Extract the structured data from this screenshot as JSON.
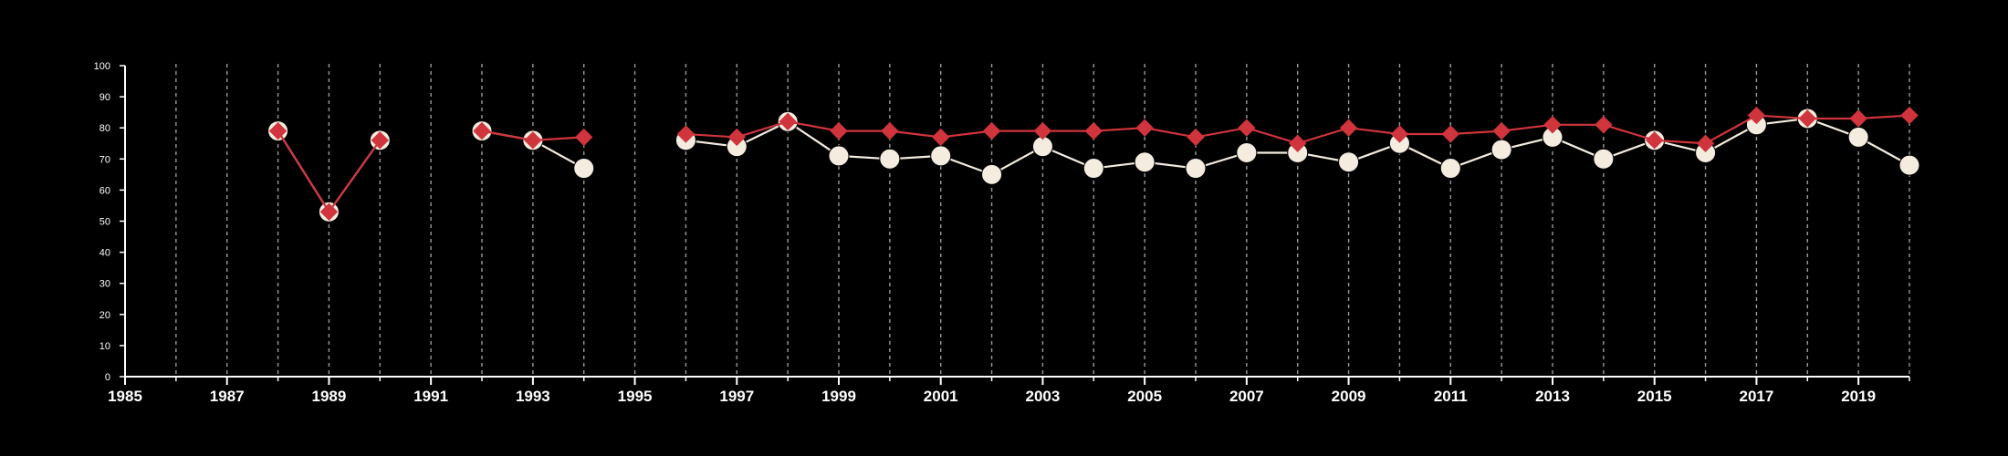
{
  "chart_data": {
    "type": "line",
    "title": "",
    "xlabel": "",
    "ylabel": "",
    "xlim": [
      1985,
      2020
    ],
    "ylim": [
      0,
      100
    ],
    "x_ticks": [
      "1985",
      "1987",
      "1989",
      "1991",
      "1993",
      "1995",
      "1997",
      "1999",
      "2001",
      "2003",
      "2005",
      "2007",
      "2009",
      "2011",
      "2013",
      "2015",
      "2017",
      "2019"
    ],
    "y_ticks": [
      "0",
      "10",
      "20",
      "30",
      "40",
      "50",
      "60",
      "70",
      "80",
      "90",
      "100"
    ],
    "vertical_gridlines": "dashed, every year",
    "series": [
      {
        "marker": "circle",
        "color": "#f5ece0",
        "points": [
          [
            1988,
            79
          ],
          [
            1989,
            53
          ],
          [
            1990,
            76
          ],
          [
            1992,
            79
          ],
          [
            1993,
            76
          ],
          [
            1994,
            67
          ],
          [
            1996,
            76
          ],
          [
            1997,
            74
          ],
          [
            1998,
            82
          ],
          [
            1999,
            71
          ],
          [
            2000,
            70
          ],
          [
            2001,
            71
          ],
          [
            2002,
            65
          ],
          [
            2003,
            74
          ],
          [
            2004,
            67
          ],
          [
            2005,
            69
          ],
          [
            2006,
            67
          ],
          [
            2007,
            72
          ],
          [
            2008,
            72
          ],
          [
            2009,
            69
          ],
          [
            2010,
            75
          ],
          [
            2011,
            67
          ],
          [
            2012,
            73
          ],
          [
            2013,
            77
          ],
          [
            2014,
            70
          ],
          [
            2015,
            76
          ],
          [
            2016,
            72
          ],
          [
            2017,
            81
          ],
          [
            2018,
            83
          ],
          [
            2019,
            77
          ],
          [
            2020,
            68
          ]
        ]
      },
      {
        "marker": "diamond",
        "color": "#d0343c",
        "points": [
          [
            1988,
            79
          ],
          [
            1989,
            53
          ],
          [
            1990,
            76
          ],
          [
            1992,
            79
          ],
          [
            1993,
            76
          ],
          [
            1994,
            77
          ],
          [
            1996,
            78
          ],
          [
            1997,
            77
          ],
          [
            1998,
            82
          ],
          [
            1999,
            79
          ],
          [
            2000,
            79
          ],
          [
            2001,
            77
          ],
          [
            2002,
            79
          ],
          [
            2003,
            79
          ],
          [
            2004,
            79
          ],
          [
            2005,
            80
          ],
          [
            2006,
            77
          ],
          [
            2007,
            80
          ],
          [
            2008,
            75
          ],
          [
            2009,
            80
          ],
          [
            2010,
            78
          ],
          [
            2011,
            78
          ],
          [
            2012,
            79
          ],
          [
            2013,
            81
          ],
          [
            2014,
            81
          ],
          [
            2015,
            76
          ],
          [
            2016,
            75
          ],
          [
            2017,
            84
          ],
          [
            2018,
            83
          ],
          [
            2019,
            83
          ],
          [
            2020,
            84
          ]
        ]
      }
    ]
  }
}
